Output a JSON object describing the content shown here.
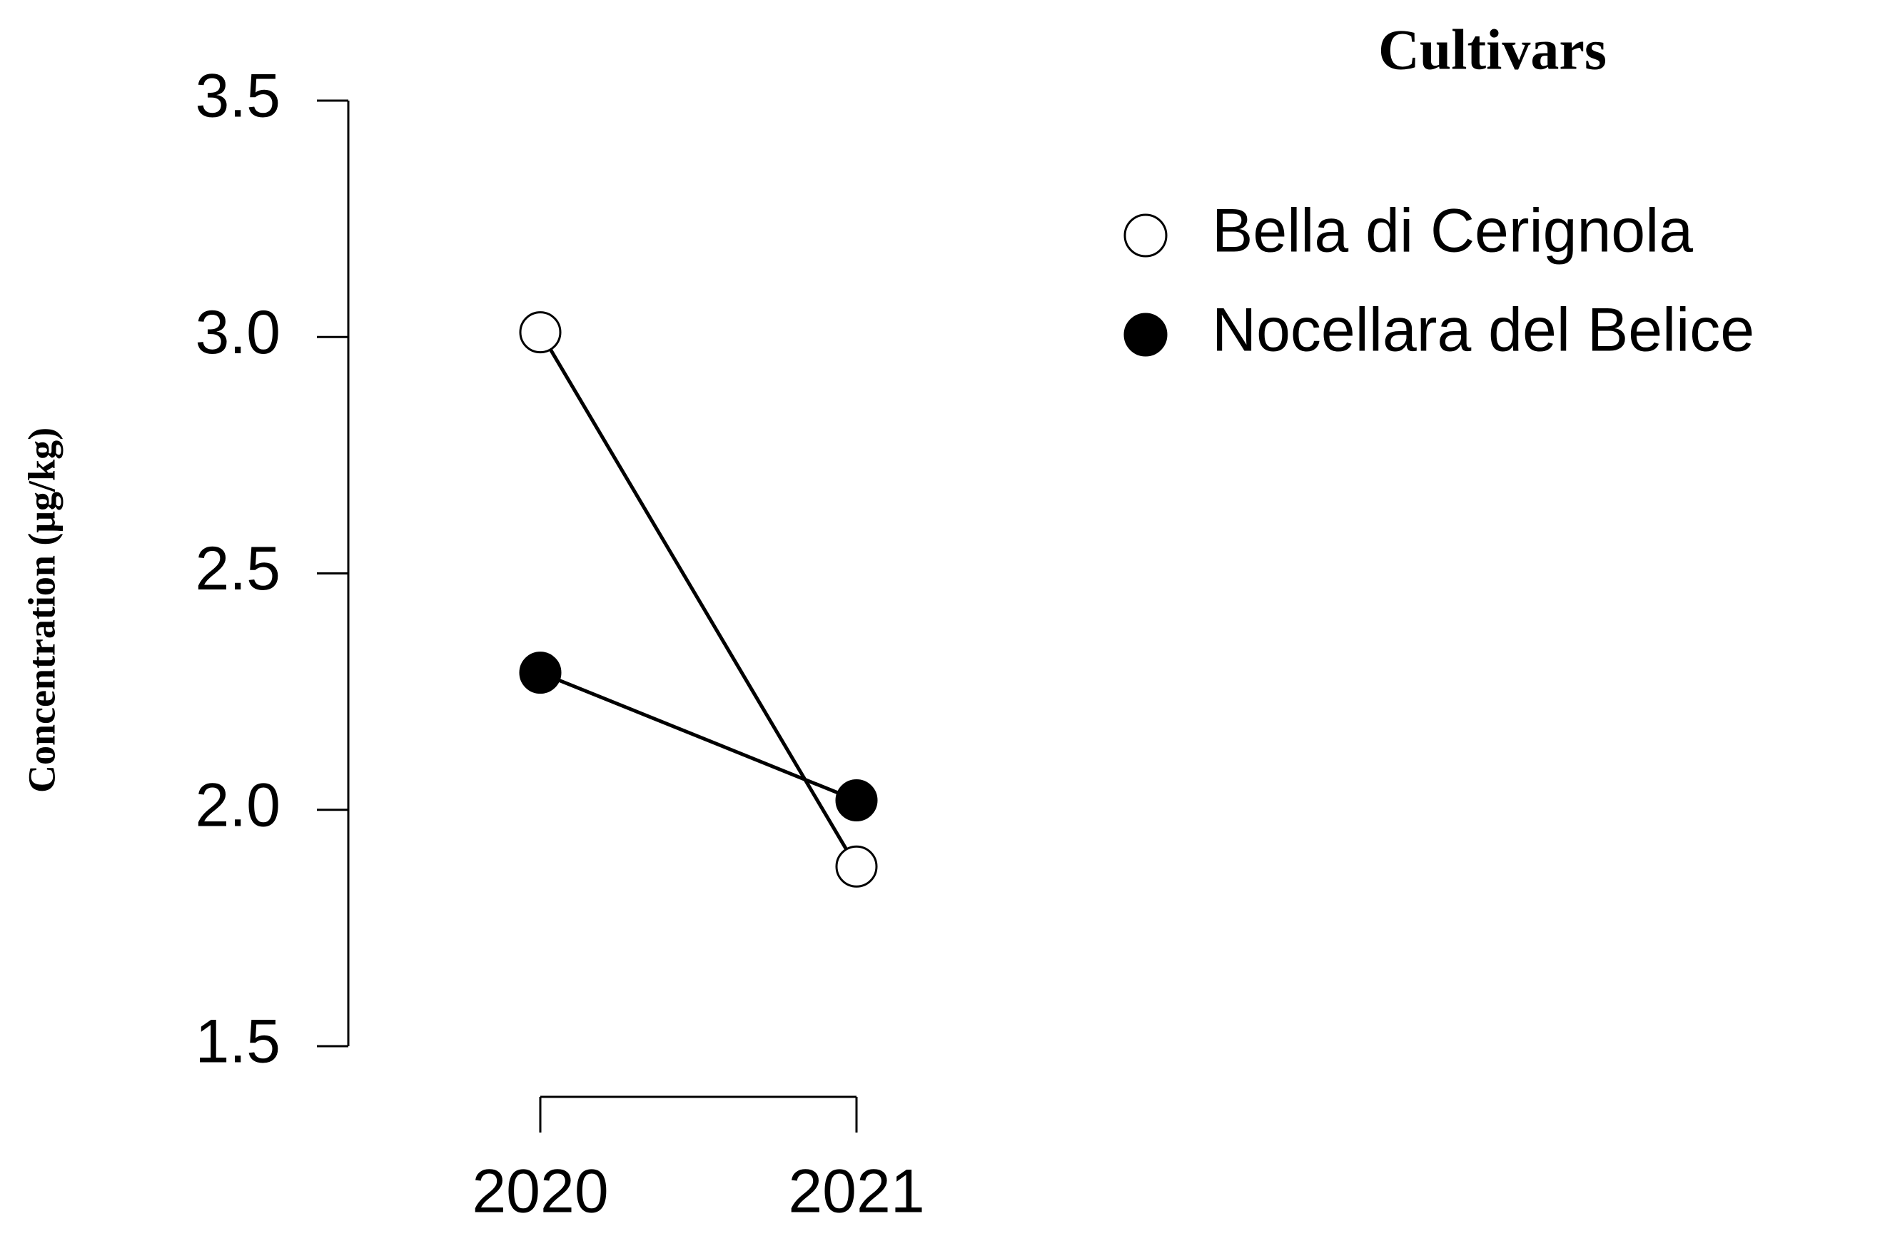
{
  "chart_data": {
    "type": "line",
    "y_label": "Concentration (μg/kg)",
    "legend_title": "Cultivars",
    "categories": [
      "2020",
      "2021"
    ],
    "series": [
      {
        "name": "Bella di Cerignola",
        "color": "#000000",
        "fill": "#ffffff",
        "values": [
          3.01,
          1.88
        ]
      },
      {
        "name": "Nocellara del Belice",
        "color": "#000000",
        "fill": "#000000",
        "values": [
          2.29,
          2.02
        ]
      }
    ],
    "ylim": [
      1.5,
      3.5
    ],
    "yticks": [
      1.5,
      {
        "value": 2.0,
        "label": "2.0"
      },
      2.5,
      {
        "value": 3.0,
        "label": "3.0"
      },
      3.5
    ],
    "grid": false,
    "legend": "top-right"
  }
}
